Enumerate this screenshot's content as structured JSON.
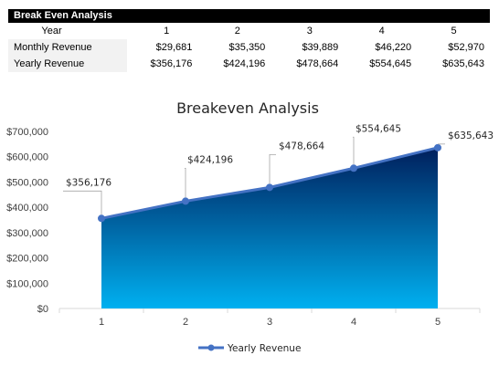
{
  "sheet": {
    "title": "Break Even Analysis",
    "header_label": "Year",
    "years": [
      "1",
      "2",
      "3",
      "4",
      "5"
    ],
    "rows": [
      {
        "label": "Monthly Revenue",
        "values": [
          "$29,681",
          "$35,350",
          "$39,889",
          "$46,220",
          "$52,970"
        ]
      },
      {
        "label": "Yearly Revenue",
        "values": [
          "$356,176",
          "$424,196",
          "$478,664",
          "$554,645",
          "$635,643"
        ]
      }
    ]
  },
  "chart_data": {
    "type": "area",
    "title": "Breakeven Analysis",
    "categories": [
      "1",
      "2",
      "3",
      "4",
      "5"
    ],
    "series": [
      {
        "name": "Yearly Revenue",
        "values": [
          356176,
          424196,
          478664,
          554645,
          635643
        ],
        "labels": [
          "$356,176",
          "$424,196",
          "$478,664",
          "$554,645",
          "$635,643"
        ]
      }
    ],
    "ylim": [
      0,
      700000
    ],
    "yticks": [
      0,
      100000,
      200000,
      300000,
      400000,
      500000,
      600000,
      700000
    ],
    "ytick_labels": [
      "$0",
      "$100,000",
      "$200,000",
      "$300,000",
      "$400,000",
      "$500,000",
      "$600,000",
      "$700,000"
    ],
    "grid": false,
    "legend": "bottom",
    "colors": {
      "line": "#4472c4",
      "fill_top": "#001f5c",
      "fill_bottom": "#00b0f0"
    }
  }
}
